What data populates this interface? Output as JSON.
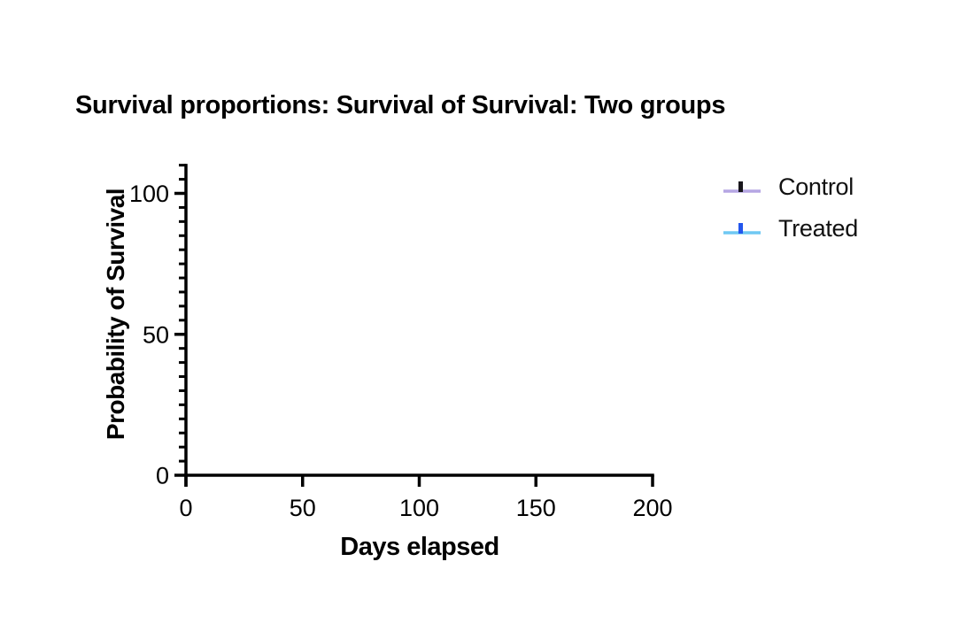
{
  "page": {
    "background": "#ffffff"
  },
  "chart_data": {
    "type": "line",
    "title": "Survival proportions: Survival of Survival: Two groups",
    "xlabel": "Days elapsed",
    "ylabel": "Probability of Survival",
    "xlim": [
      0,
      200
    ],
    "ylim": [
      0,
      110
    ],
    "x_ticks": [
      0,
      50,
      100,
      150,
      200
    ],
    "y_major_ticks": [
      0,
      50,
      100
    ],
    "y_minor_step": 5,
    "grid": false,
    "axis_color": "#000000",
    "tick_label_color": "#000000",
    "legend_position": "right-top",
    "series": [
      {
        "name": "Control",
        "line_color": "#b5a6e3",
        "censor_tick_color": "#18161c",
        "x": [],
        "y": []
      },
      {
        "name": "Treated",
        "line_color": "#6fc8f3",
        "censor_tick_color": "#2356ed",
        "x": [],
        "y": []
      }
    ]
  }
}
